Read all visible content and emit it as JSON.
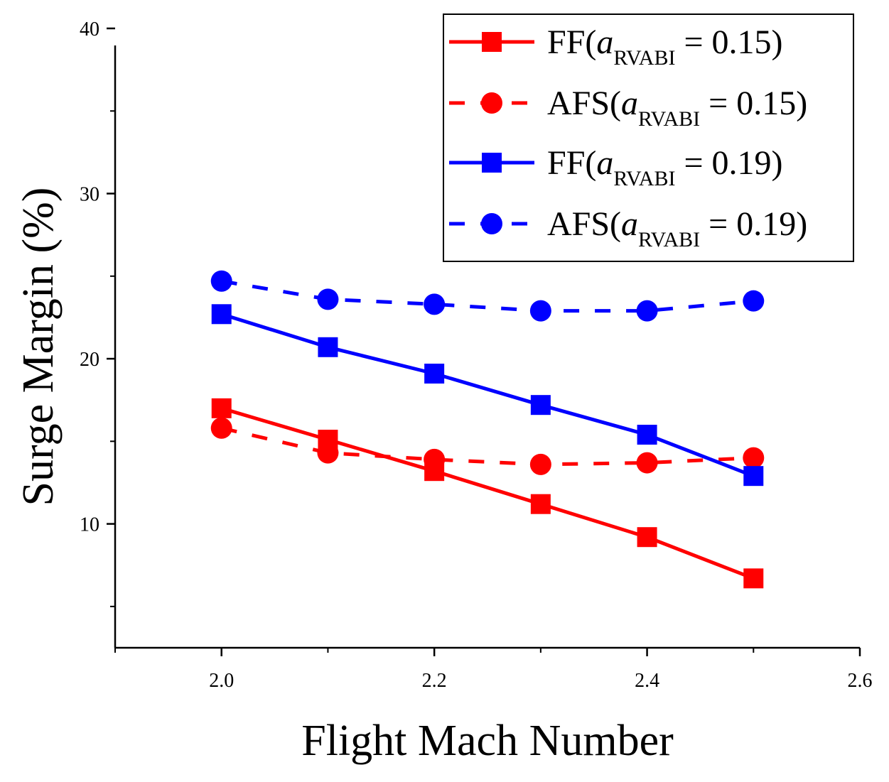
{
  "chart_data": {
    "type": "line",
    "title": "",
    "xlabel": "Flight Mach Number",
    "ylabel": "Surge Margin (%)",
    "xlim": [
      1.9,
      2.6
    ],
    "ylim": [
      2.5,
      40
    ],
    "xticks": [
      2.0,
      2.2,
      2.4,
      2.6
    ],
    "xtick_labels": [
      "2.0",
      "2.2",
      "2.4",
      "2.6"
    ],
    "yticks": [
      10,
      20,
      30,
      40
    ],
    "ytick_labels": [
      "10",
      "20",
      "30",
      "40"
    ],
    "grid": false,
    "legend_position": "top-right",
    "x": [
      2.0,
      2.1,
      2.2,
      2.3,
      2.4,
      2.5
    ],
    "series": [
      {
        "name": "FF(a_RVABI = 0.15)",
        "legend_prefix": "FF(",
        "legend_var": "a",
        "legend_sub": "RVABI",
        "legend_suffix": " = 0.15)",
        "color": "#ff0000",
        "dashed": false,
        "marker": "square",
        "values": [
          17.0,
          15.1,
          13.2,
          11.2,
          9.2,
          6.7
        ]
      },
      {
        "name": "AFS(a_RVABI = 0.15)",
        "legend_prefix": "AFS(",
        "legend_var": "a",
        "legend_sub": "RVABI",
        "legend_suffix": " = 0.15)",
        "color": "#ff0000",
        "dashed": true,
        "marker": "circle",
        "values": [
          15.8,
          14.3,
          13.9,
          13.6,
          13.7,
          14.0
        ]
      },
      {
        "name": "FF(a_RVABI = 0.19)",
        "legend_prefix": "FF(",
        "legend_var": "a",
        "legend_sub": "RVABI",
        "legend_suffix": " = 0.19)",
        "color": "#0000ff",
        "dashed": false,
        "marker": "square",
        "values": [
          22.7,
          20.7,
          19.1,
          17.2,
          15.4,
          12.9
        ]
      },
      {
        "name": "AFS(a_RVABI = 0.19)",
        "legend_prefix": "AFS(",
        "legend_var": "a",
        "legend_sub": "RVABI",
        "legend_suffix": " = 0.19)",
        "color": "#0000ff",
        "dashed": true,
        "marker": "circle",
        "values": [
          24.7,
          23.6,
          23.3,
          22.9,
          22.9,
          23.5
        ]
      }
    ]
  }
}
